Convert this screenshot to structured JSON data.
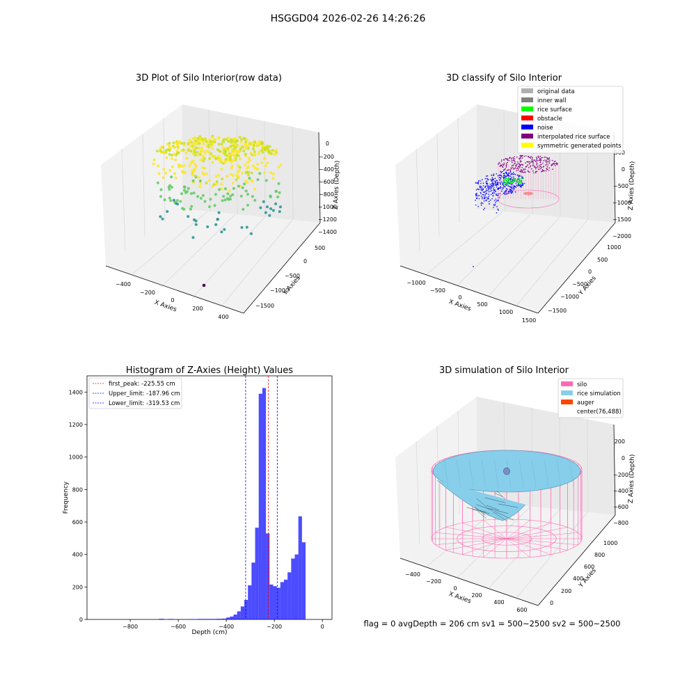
{
  "suptitle": "HSGGD04 2026-02-26 14:26:26",
  "status_line": "flag = 0     avgDepth = 206 cm  sv1 = 500~2500  sv2 = 500~2500",
  "chart_data": [
    {
      "id": "raw",
      "type": "scatter3d",
      "title": "3D Plot of Silo Interior(row data)",
      "xlabel": "X Axies",
      "ylabel": "Y Axies",
      "zlabel": "Z Axies (Depth)",
      "xticks": [
        "−400",
        "−200",
        "0",
        "200",
        "400"
      ],
      "yticks": [
        "500",
        "0",
        "−500",
        "−1000",
        "−1500"
      ],
      "zticks": [
        "0",
        "−200",
        "−400",
        "−600",
        "−800",
        "−1000",
        "−1200",
        "−1400"
      ],
      "colormap": [
        "#440154",
        "#21918c",
        "#5ec962",
        "#fde725"
      ]
    },
    {
      "id": "classify",
      "type": "scatter3d",
      "title": "3D classify of Silo Interior",
      "xlabel": "X Axies",
      "ylabel": "Y Axies",
      "zlabel": "Z Axies (Depth)",
      "xticks": [
        "−1000",
        "−500",
        "0",
        "500",
        "1000",
        "1500"
      ],
      "yticks": [
        "1000",
        "500",
        "0",
        "−500",
        "−1000",
        "−1500"
      ],
      "zticks": [
        "500",
        "0",
        "−500",
        "−1000",
        "−1500",
        "−2000"
      ],
      "legend_position": "upper right",
      "legend": [
        {
          "label": "original data",
          "color": "#b0b0b0"
        },
        {
          "label": "inner wall",
          "color": "#808080"
        },
        {
          "label": "rice surface",
          "color": "#00ff00"
        },
        {
          "label": "obstacle",
          "color": "#ff0000"
        },
        {
          "label": "noise",
          "color": "#0000ff"
        },
        {
          "label": "interpolated rice surface",
          "color": "#800080"
        },
        {
          "label": "symmetric generated points",
          "color": "#ffff00"
        }
      ]
    },
    {
      "id": "hist",
      "type": "bar",
      "title": "Histogram of Z-Axies (Height) Values",
      "xlabel": "Depth (cm)",
      "ylabel": "Frequency",
      "xlim": [
        -980,
        40
      ],
      "ylim": [
        0,
        1500
      ],
      "xticks": [
        -800,
        -600,
        -400,
        -200,
        0
      ],
      "yticks": [
        0,
        200,
        400,
        600,
        800,
        1000,
        1200,
        1400
      ],
      "bar_color": "#0000ff",
      "bins": [
        {
          "x0": -680,
          "x1": -660,
          "count": 4
        },
        {
          "x0": -640,
          "x1": -620,
          "count": 3
        },
        {
          "x0": -560,
          "x1": -540,
          "count": 2
        },
        {
          "x0": -540,
          "x1": -520,
          "count": 2
        },
        {
          "x0": -520,
          "x1": -500,
          "count": 3
        },
        {
          "x0": -500,
          "x1": -480,
          "count": 3
        },
        {
          "x0": -480,
          "x1": -460,
          "count": 3
        },
        {
          "x0": -460,
          "x1": -440,
          "count": 3
        },
        {
          "x0": -440,
          "x1": -420,
          "count": 4
        },
        {
          "x0": -420,
          "x1": -400,
          "count": 5
        },
        {
          "x0": -400,
          "x1": -385,
          "count": 12
        },
        {
          "x0": -385,
          "x1": -370,
          "count": 18
        },
        {
          "x0": -370,
          "x1": -355,
          "count": 30
        },
        {
          "x0": -355,
          "x1": -340,
          "count": 50
        },
        {
          "x0": -340,
          "x1": -325,
          "count": 80
        },
        {
          "x0": -325,
          "x1": -310,
          "count": 120
        },
        {
          "x0": -310,
          "x1": -295,
          "count": 210
        },
        {
          "x0": -295,
          "x1": -280,
          "count": 350
        },
        {
          "x0": -280,
          "x1": -265,
          "count": 565
        },
        {
          "x0": -265,
          "x1": -250,
          "count": 1390
        },
        {
          "x0": -250,
          "x1": -235,
          "count": 1425
        },
        {
          "x0": -235,
          "x1": -220,
          "count": 530
        },
        {
          "x0": -220,
          "x1": -205,
          "count": 215
        },
        {
          "x0": -205,
          "x1": -190,
          "count": 205
        },
        {
          "x0": -190,
          "x1": -175,
          "count": 195
        },
        {
          "x0": -175,
          "x1": -160,
          "count": 230
        },
        {
          "x0": -160,
          "x1": -145,
          "count": 245
        },
        {
          "x0": -145,
          "x1": -130,
          "count": 290
        },
        {
          "x0": -130,
          "x1": -115,
          "count": 375
        },
        {
          "x0": -115,
          "x1": -100,
          "count": 400
        },
        {
          "x0": -100,
          "x1": -85,
          "count": 635
        },
        {
          "x0": -85,
          "x1": -70,
          "count": 475
        }
      ],
      "vlines": [
        {
          "label": "first_peak: -225.55 cm",
          "x": -225.55,
          "color": "#ff0000"
        },
        {
          "label": "Upper_limit: -187.96 cm",
          "x": -187.96,
          "color": "#0000ff"
        },
        {
          "label": "Lower_limit: -319.53 cm",
          "x": -319.53,
          "color": "#0000ff"
        }
      ],
      "legend_position": "upper left"
    },
    {
      "id": "simulation",
      "type": "surface3d",
      "title": "3D simulation of Silo Interior",
      "xlabel": "X Axies",
      "ylabel": "Y Axies",
      "zlabel": "Z Axies (Depth)",
      "xticks": [
        "−400",
        "−200",
        "0",
        "200",
        "400",
        "600"
      ],
      "yticks": [
        "1000",
        "800",
        "600",
        "400",
        "200",
        "0"
      ],
      "zticks": [
        "200",
        "0",
        "−200",
        "−400",
        "−600",
        "−800"
      ],
      "legend_position": "upper right",
      "legend": [
        {
          "label": "silo",
          "color": "#ff69b4"
        },
        {
          "label": "rice simulation",
          "color": "#87ceeb"
        },
        {
          "label": "auger",
          "color": "#ff4500"
        },
        {
          "label": "center(76,488)",
          "color": ""
        }
      ]
    }
  ]
}
